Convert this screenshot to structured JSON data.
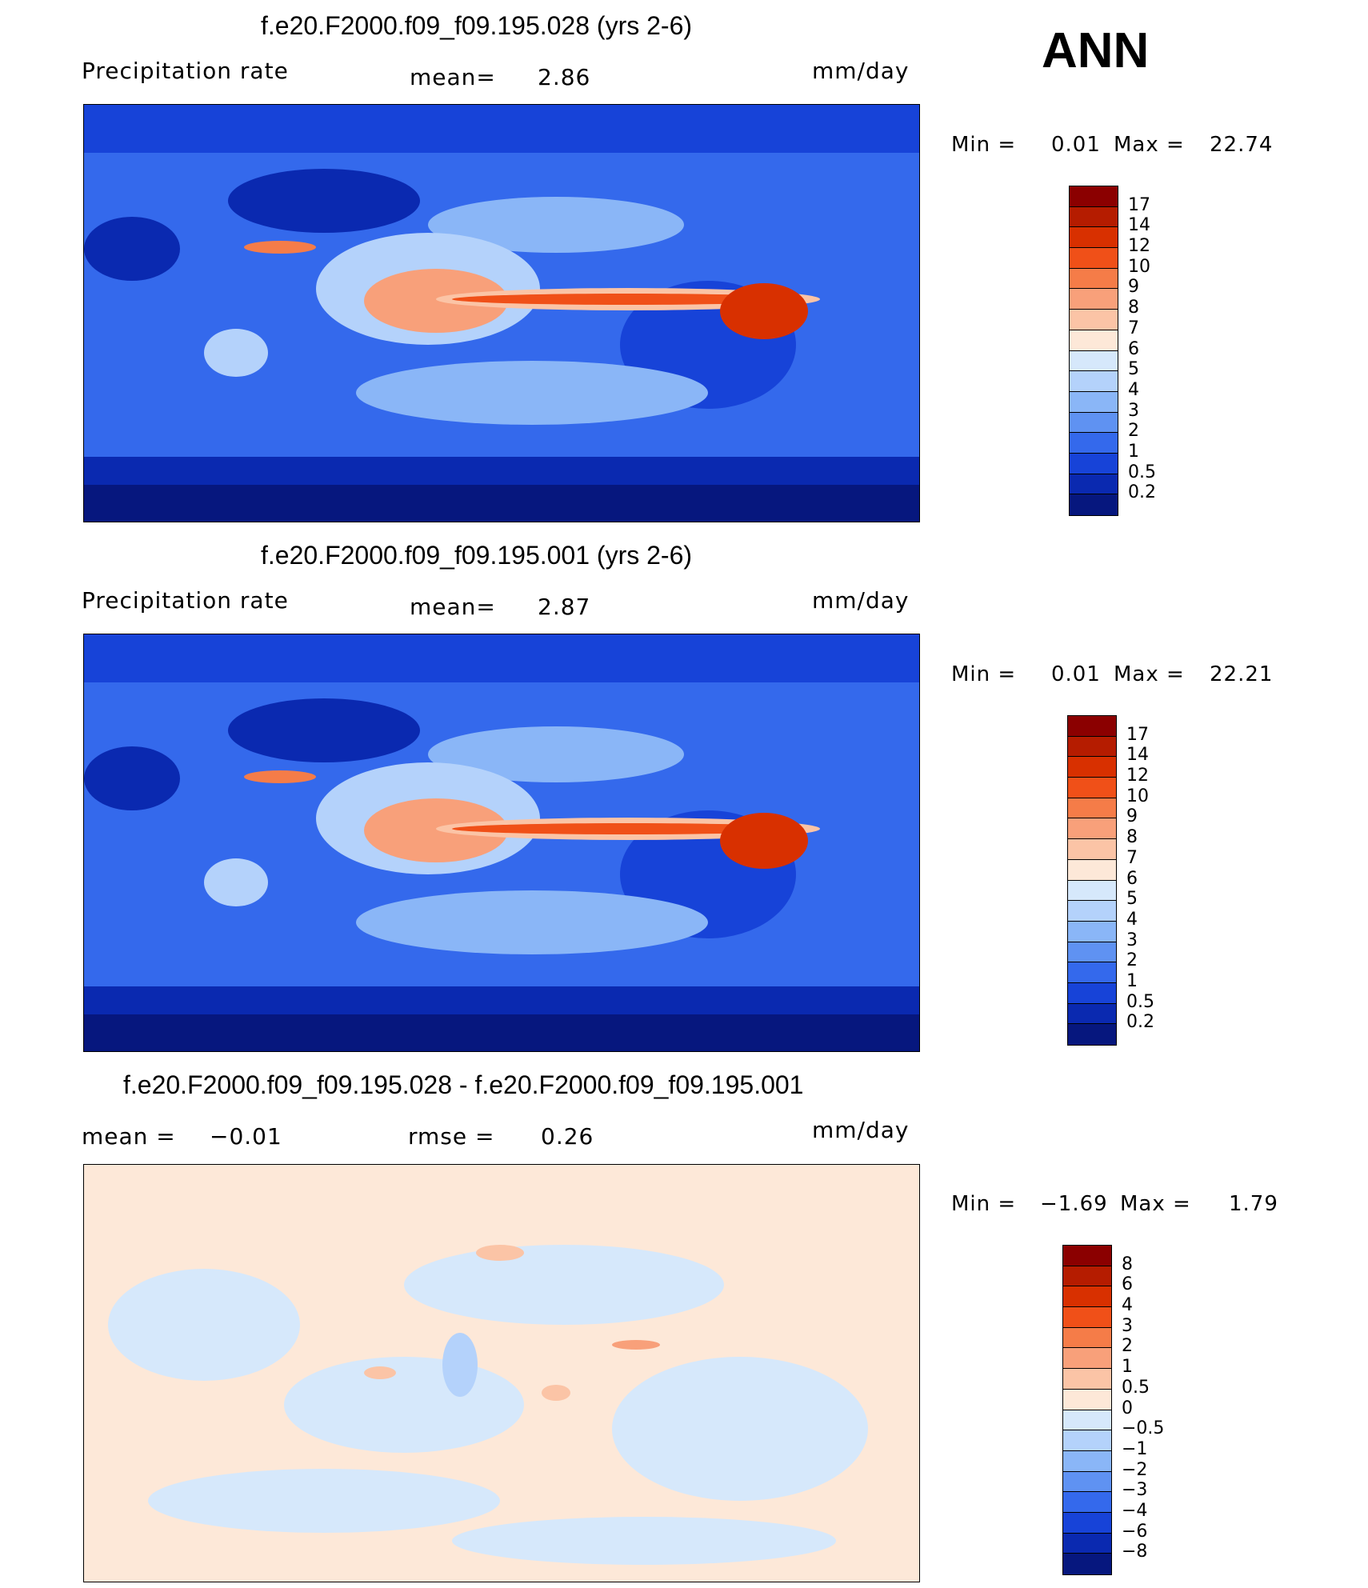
{
  "season_label": "ANN",
  "panels": [
    {
      "title": "f.e20.F2000.f09_f09.195.028 (yrs 2-6)",
      "left_label": "Precipitation  rate",
      "mid_label": "mean=",
      "mid_value": "2.86",
      "units": "mm/day",
      "minmax": {
        "min_label": "Min  =",
        "min_value": "0.01",
        "max_label": "Max  =",
        "max_value": "22.74"
      },
      "levels": [
        "17",
        "14",
        "12",
        "10",
        "9",
        "8",
        "7",
        "6",
        "5",
        "4",
        "3",
        "2",
        "1",
        "0.5",
        "0.2"
      ],
      "colors": [
        "#8b0000",
        "#b51c00",
        "#d83000",
        "#f05018",
        "#f57c48",
        "#f8a07a",
        "#fbc4a6",
        "#fde8d8",
        "#d6e8fb",
        "#b4d2fb",
        "#8ab6f7",
        "#5f92f2",
        "#3469ec",
        "#1743d8",
        "#0a29b0",
        "#06177e"
      ]
    },
    {
      "title": "f.e20.F2000.f09_f09.195.001 (yrs 2-6)",
      "left_label": "Precipitation  rate",
      "mid_label": "mean=",
      "mid_value": "2.87",
      "units": "mm/day",
      "minmax": {
        "min_label": "Min  =",
        "min_value": "0.01",
        "max_label": "Max  =",
        "max_value": "22.21"
      },
      "levels": [
        "17",
        "14",
        "12",
        "10",
        "9",
        "8",
        "7",
        "6",
        "5",
        "4",
        "3",
        "2",
        "1",
        "0.5",
        "0.2"
      ],
      "colors": [
        "#8b0000",
        "#b51c00",
        "#d83000",
        "#f05018",
        "#f57c48",
        "#f8a07a",
        "#fbc4a6",
        "#fde8d8",
        "#d6e8fb",
        "#b4d2fb",
        "#8ab6f7",
        "#5f92f2",
        "#3469ec",
        "#1743d8",
        "#0a29b0",
        "#06177e"
      ]
    },
    {
      "title": "f.e20.F2000.f09_f09.195.028 - f.e20.F2000.f09_f09.195.001",
      "left_label": "mean  =",
      "left_value": "−0.01",
      "mid_label": "rmse  =",
      "mid_value": "0.26",
      "units": "mm/day",
      "minmax": {
        "min_label": "Min  =",
        "min_value": "−1.69",
        "max_label": "Max  =",
        "max_value": "1.79"
      },
      "levels": [
        "8",
        "6",
        "4",
        "3",
        "2",
        "1",
        "0.5",
        "0",
        "−0.5",
        "−1",
        "−2",
        "−3",
        "−4",
        "−6",
        "−8"
      ],
      "colors": [
        "#8b0000",
        "#b51c00",
        "#d83000",
        "#f05018",
        "#f57c48",
        "#f8a07a",
        "#fbc4a6",
        "#fde8d8",
        "#d6e8fb",
        "#b4d2fb",
        "#8ab6f7",
        "#5f92f2",
        "#3469ec",
        "#1743d8",
        "#0a29b0",
        "#06177e"
      ]
    }
  ]
}
